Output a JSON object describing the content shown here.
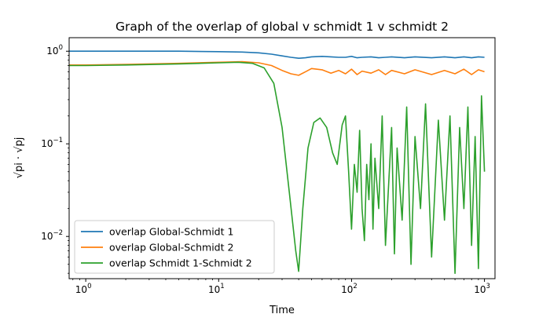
{
  "chart_data": {
    "type": "line",
    "title": "Graph of the overlap of global v schmidt 1 v schmidt 2",
    "xlabel": "Time",
    "ylabel": "√pi · √pj",
    "xscale": "log",
    "yscale": "log",
    "xlim": [
      0.75,
      1200
    ],
    "ylim": [
      0.0035,
      1.4
    ],
    "xticks": [
      {
        "value": 1,
        "base": "10",
        "exp": "0"
      },
      {
        "value": 10,
        "base": "10",
        "exp": "1"
      },
      {
        "value": 100,
        "base": "10",
        "exp": "2"
      },
      {
        "value": 1000,
        "base": "10",
        "exp": "3"
      }
    ],
    "yticks": [
      {
        "value": 0.01,
        "base": "10",
        "exp": "−2"
      },
      {
        "value": 0.1,
        "base": "10",
        "exp": "−1"
      },
      {
        "value": 1,
        "base": "10",
        "exp": "0"
      }
    ],
    "grid": false,
    "legend_position": "lower-left",
    "series": [
      {
        "name": "overlap Global-Schmidt 1",
        "color": "#1f77b4",
        "x": [
          0.75,
          1,
          2,
          5,
          10,
          15,
          20,
          25,
          30,
          35,
          40,
          45,
          50,
          60,
          70,
          80,
          90,
          100,
          110,
          120,
          140,
          160,
          180,
          200,
          250,
          300,
          400,
          500,
          600,
          700,
          800,
          900,
          1000
        ],
        "y": [
          1.0,
          1.0,
          1.0,
          1.0,
          0.99,
          0.98,
          0.96,
          0.93,
          0.89,
          0.86,
          0.84,
          0.85,
          0.87,
          0.88,
          0.87,
          0.86,
          0.86,
          0.88,
          0.85,
          0.86,
          0.87,
          0.85,
          0.86,
          0.87,
          0.85,
          0.87,
          0.85,
          0.87,
          0.85,
          0.87,
          0.85,
          0.87,
          0.86
        ]
      },
      {
        "name": "overlap Global-Schmidt 2",
        "color": "#ff7f0e",
        "x": [
          0.75,
          1,
          2,
          5,
          10,
          15,
          20,
          25,
          30,
          35,
          40,
          45,
          50,
          60,
          70,
          80,
          90,
          100,
          110,
          120,
          140,
          160,
          180,
          200,
          250,
          300,
          400,
          500,
          600,
          700,
          800,
          900,
          1000
        ],
        "y": [
          0.71,
          0.71,
          0.72,
          0.74,
          0.76,
          0.77,
          0.75,
          0.7,
          0.62,
          0.57,
          0.55,
          0.6,
          0.65,
          0.63,
          0.58,
          0.62,
          0.57,
          0.64,
          0.56,
          0.61,
          0.58,
          0.63,
          0.56,
          0.62,
          0.57,
          0.63,
          0.56,
          0.62,
          0.57,
          0.64,
          0.56,
          0.63,
          0.6
        ]
      },
      {
        "name": "overlap Schmidt 1-Schmidt 2",
        "color": "#2ca02c",
        "x": [
          0.75,
          1,
          2,
          5,
          10,
          14,
          18,
          22,
          26,
          30,
          34,
          38,
          40,
          43,
          47,
          52,
          58,
          65,
          72,
          78,
          85,
          90,
          95,
          100,
          105,
          110,
          115,
          120,
          125,
          130,
          135,
          140,
          145,
          150,
          160,
          170,
          180,
          200,
          210,
          220,
          240,
          260,
          280,
          300,
          330,
          360,
          400,
          450,
          500,
          550,
          600,
          650,
          700,
          750,
          800,
          850,
          900,
          950,
          1000
        ],
        "y": [
          0.7,
          0.7,
          0.71,
          0.73,
          0.75,
          0.76,
          0.74,
          0.66,
          0.45,
          0.15,
          0.03,
          0.007,
          0.0042,
          0.02,
          0.09,
          0.17,
          0.19,
          0.15,
          0.08,
          0.06,
          0.16,
          0.2,
          0.05,
          0.012,
          0.06,
          0.03,
          0.14,
          0.02,
          0.009,
          0.06,
          0.025,
          0.1,
          0.012,
          0.07,
          0.02,
          0.2,
          0.008,
          0.15,
          0.0065,
          0.09,
          0.015,
          0.25,
          0.005,
          0.12,
          0.02,
          0.27,
          0.006,
          0.18,
          0.015,
          0.2,
          0.004,
          0.15,
          0.02,
          0.25,
          0.008,
          0.12,
          0.0045,
          0.33,
          0.05
        ]
      }
    ]
  }
}
